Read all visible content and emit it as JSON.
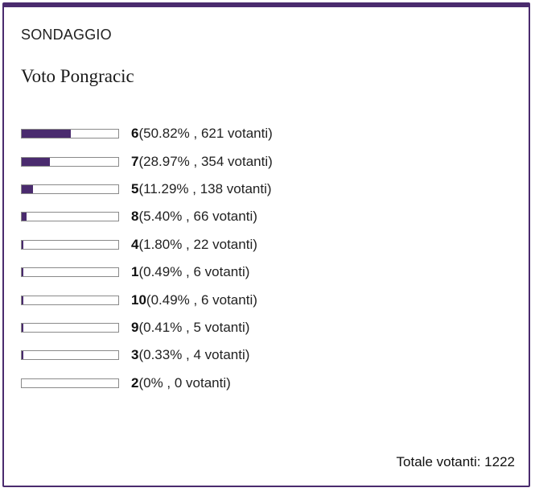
{
  "poll": {
    "heading": "SONDAGGIO",
    "question": "Voto Pongracic",
    "options": [
      {
        "value": "6",
        "detail": "(50.82% , 621 votanti)",
        "percent": 50.82
      },
      {
        "value": "7",
        "detail": "(28.97% , 354 votanti)",
        "percent": 28.97
      },
      {
        "value": "5",
        "detail": "(11.29% , 138 votanti)",
        "percent": 11.29
      },
      {
        "value": "8",
        "detail": "(5.40% , 66 votanti)",
        "percent": 5.4
      },
      {
        "value": "4",
        "detail": "(1.80% , 22 votanti)",
        "percent": 1.8
      },
      {
        "value": "1",
        "detail": "(0.49% , 6 votanti)",
        "percent": 0.49
      },
      {
        "value": "10",
        "detail": "(0.49% , 6 votanti)",
        "percent": 0.49
      },
      {
        "value": "9",
        "detail": "(0.41% , 5 votanti)",
        "percent": 0.41
      },
      {
        "value": "3",
        "detail": "(0.33% , 4 votanti)",
        "percent": 0.33
      },
      {
        "value": "2",
        "detail": "(0% , 0 votanti)",
        "percent": 0
      }
    ],
    "total_label": "Totale votanti: 1222"
  },
  "colors": {
    "accent": "#4a2b6e",
    "bar_border": "#8a8a8a"
  }
}
